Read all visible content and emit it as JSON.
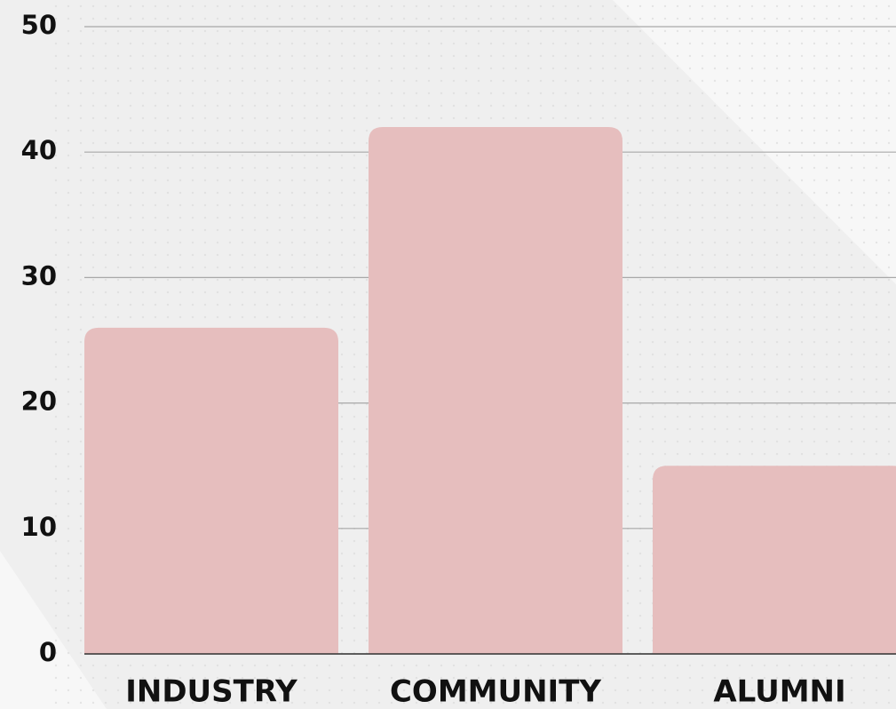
{
  "chart_data": {
    "type": "bar",
    "categories": [
      "INDUSTRY",
      "COMMUNITY",
      "ALUMNI"
    ],
    "values": [
      26,
      42,
      15
    ],
    "color": "#e6bebe",
    "ylim": [
      0,
      50
    ],
    "yticks": [
      0,
      10,
      20,
      30,
      40,
      50
    ],
    "grid": true
  }
}
